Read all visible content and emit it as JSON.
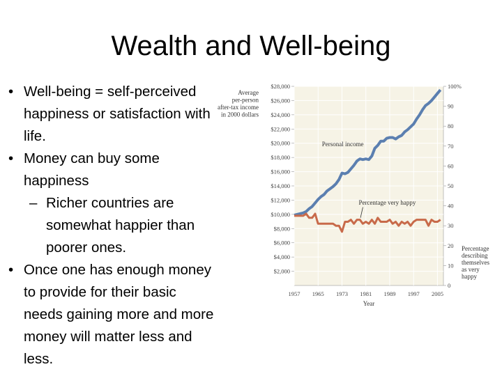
{
  "slide": {
    "title": "Wealth and Well-being",
    "bullets": [
      {
        "level": 1,
        "text": "Well-being = self-perceived happiness or satisfaction with life."
      },
      {
        "level": 1,
        "text": "Money can buy some happiness"
      },
      {
        "level": 2,
        "text": "Richer countries are somewhat happier than poorer ones."
      },
      {
        "level": 1,
        "text": "Once one has enough money to provide for their basic needs gaining more and more money will matter less and less."
      }
    ]
  },
  "chart_data": {
    "type": "line",
    "title": "",
    "xlabel": "Year",
    "ylabel_left": "Average per-person after-tax income in 2000 dollars",
    "ylabel_right": "Percentage describing themselves as very happy",
    "x_ticks": [
      "1957",
      "1965",
      "1973",
      "1981",
      "1989",
      "1997",
      "2005"
    ],
    "xlim": [
      1957,
      2007
    ],
    "y_left_ticks": [
      "$28,000",
      "$26,000",
      "$24,000",
      "$22,000",
      "$20,000",
      "$18,000",
      "$16,000",
      "$14,000",
      "$12,000",
      "$10,000",
      "$8,000",
      "$6,000",
      "$4,000",
      "$2,000"
    ],
    "y_left_lim": [
      0,
      28000
    ],
    "y_right_ticks": [
      "100%",
      "90",
      "80",
      "70",
      "60",
      "50",
      "40",
      "30",
      "20",
      "10",
      "0"
    ],
    "y_right_lim": [
      0,
      100
    ],
    "colors": {
      "income": "#5b7fb0",
      "happy": "#c86a4a",
      "plot_bg": "#f6f3e6",
      "grid": "#ffffff",
      "axis": "#999999"
    },
    "series": [
      {
        "name": "Personal income",
        "axis": "left",
        "x": [
          1957,
          1959,
          1960,
          1961,
          1962,
          1963,
          1964,
          1965,
          1966,
          1967,
          1968,
          1969,
          1970,
          1971,
          1972,
          1973,
          1974,
          1975,
          1976,
          1977,
          1978,
          1979,
          1980,
          1981,
          1982,
          1983,
          1984,
          1985,
          1986,
          1987,
          1988,
          1989,
          1990,
          1991,
          1992,
          1993,
          1994,
          1995,
          1996,
          1997,
          1998,
          1999,
          2000,
          2001,
          2002,
          2003,
          2004,
          2005,
          2006
        ],
        "y": [
          9900,
          10100,
          10200,
          10400,
          10800,
          11100,
          11600,
          12100,
          12500,
          12800,
          13300,
          13600,
          13900,
          14300,
          14900,
          15800,
          15700,
          15900,
          16400,
          16900,
          17500,
          17800,
          17700,
          17800,
          17700,
          18200,
          19300,
          19700,
          20300,
          20300,
          20700,
          20800,
          20800,
          20600,
          20900,
          21100,
          21600,
          21900,
          22300,
          22700,
          23400,
          24000,
          24700,
          25300,
          25600,
          26000,
          26500,
          27000,
          27500
        ]
      },
      {
        "name": "Percentage very happy",
        "axis": "right",
        "x": [
          1957,
          1959,
          1960,
          1961,
          1962,
          1963,
          1964,
          1965,
          1966,
          1967,
          1968,
          1969,
          1970,
          1971,
          1972,
          1973,
          1974,
          1975,
          1976,
          1977,
          1978,
          1979,
          1980,
          1981,
          1982,
          1983,
          1984,
          1985,
          1986,
          1987,
          1988,
          1989,
          1990,
          1991,
          1992,
          1993,
          1994,
          1995,
          1996,
          1997,
          1998,
          1999,
          2000,
          2001,
          2002,
          2003,
          2004,
          2005,
          2006
        ],
        "y": [
          35,
          35,
          35,
          36,
          34,
          34,
          36,
          31,
          31,
          31,
          31,
          31,
          31,
          30,
          30,
          27,
          32,
          32,
          33,
          31,
          33,
          33,
          31,
          32,
          31,
          33,
          31,
          34,
          32,
          32,
          32,
          33,
          31,
          32,
          30,
          32,
          31,
          32,
          30,
          32,
          33,
          33,
          33,
          33,
          30,
          33,
          32,
          32,
          33
        ]
      }
    ],
    "annotations": [
      "Personal income",
      "Percentage very happy"
    ]
  }
}
